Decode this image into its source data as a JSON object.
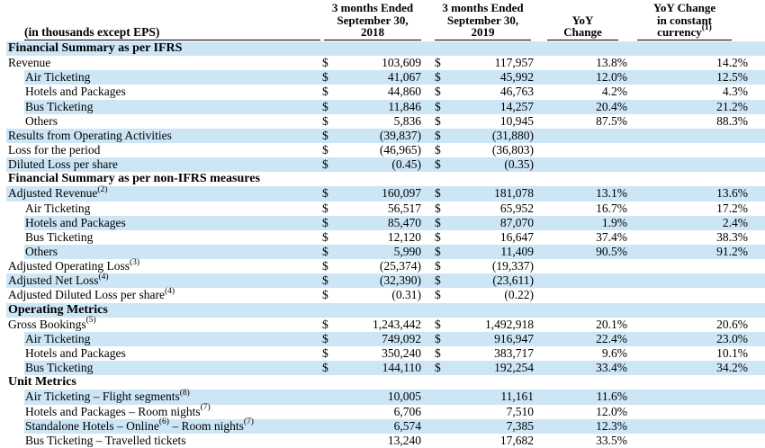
{
  "table": {
    "currency_symbol": "$",
    "row_header": "(in thousands except EPS)",
    "colors": {
      "row_highlight": "#cce6f5",
      "text": "#000000",
      "rule": "#000000"
    },
    "columns": {
      "c2018": {
        "line1": "3 months Ended",
        "line2": "September 30,",
        "line3": "2018"
      },
      "c2019": {
        "line1": "3 months Ended",
        "line2": "September 30,",
        "line3": "2019"
      },
      "yoy": {
        "line1": "YoY",
        "line2": "Change"
      },
      "cc": {
        "line1": "YoY Change",
        "line2": "in constant",
        "line3": "currency",
        "sup": "(1)"
      }
    },
    "rows": [
      {
        "type": "section",
        "label": "Financial Summary as per IFRS",
        "shaded": true
      },
      {
        "type": "data",
        "label": "Revenue",
        "indent": false,
        "shaded": false,
        "dollar": true,
        "v2018": "103,609",
        "v2019": "117,957",
        "yoy": "13.8%",
        "cc": "14.2%"
      },
      {
        "type": "data",
        "label": "Air Ticketing",
        "indent": true,
        "shaded": true,
        "dollar": true,
        "v2018": "41,067",
        "v2019": "45,992",
        "yoy": "12.0%",
        "cc": "12.5%"
      },
      {
        "type": "data",
        "label": "Hotels and Packages",
        "indent": true,
        "shaded": false,
        "dollar": true,
        "v2018": "44,860",
        "v2019": "46,763",
        "yoy": "4.2%",
        "cc": "4.3%"
      },
      {
        "type": "data",
        "label": "Bus Ticketing",
        "indent": true,
        "shaded": true,
        "dollar": true,
        "v2018": "11,846",
        "v2019": "14,257",
        "yoy": "20.4%",
        "cc": "21.2%"
      },
      {
        "type": "data",
        "label": "Others",
        "indent": true,
        "shaded": false,
        "dollar": true,
        "v2018": "5,836",
        "v2019": "10,945",
        "yoy": "87.5%",
        "cc": "88.3%"
      },
      {
        "type": "data",
        "label": "Results from Operating Activities",
        "indent": false,
        "shaded": true,
        "dollar": true,
        "v2018": "(39,837)",
        "v2019": "(31,880)",
        "yoy": "",
        "cc": ""
      },
      {
        "type": "data",
        "label": "Loss for the period",
        "indent": false,
        "shaded": false,
        "dollar": true,
        "v2018": "(46,965)",
        "v2019": "(36,803)",
        "yoy": "",
        "cc": ""
      },
      {
        "type": "data",
        "label": "Diluted Loss per share",
        "indent": false,
        "shaded": true,
        "dollar": true,
        "v2018": "(0.45)",
        "v2019": "(0.35)",
        "yoy": "",
        "cc": ""
      },
      {
        "type": "section",
        "label": "Financial Summary as per non-IFRS measures",
        "shaded": false
      },
      {
        "type": "data",
        "label": "Adjusted Revenue",
        "sup": "(2)",
        "indent": false,
        "shaded": true,
        "dollar": true,
        "v2018": "160,097",
        "v2019": "181,078",
        "yoy": "13.1%",
        "cc": "13.6%"
      },
      {
        "type": "data",
        "label": "Air Ticketing",
        "indent": true,
        "shaded": false,
        "dollar": true,
        "v2018": "56,517",
        "v2019": "65,952",
        "yoy": "16.7%",
        "cc": "17.2%"
      },
      {
        "type": "data",
        "label": "Hotels and Packages",
        "indent": true,
        "shaded": true,
        "dollar": true,
        "v2018": "85,470",
        "v2019": "87,070",
        "yoy": "1.9%",
        "cc": "2.4%"
      },
      {
        "type": "data",
        "label": "Bus Ticketing",
        "indent": true,
        "shaded": false,
        "dollar": true,
        "v2018": "12,120",
        "v2019": "16,647",
        "yoy": "37.4%",
        "cc": "38.3%"
      },
      {
        "type": "data",
        "label": "Others",
        "indent": true,
        "shaded": true,
        "dollar": true,
        "v2018": "5,990",
        "v2019": "11,409",
        "yoy": "90.5%",
        "cc": "91.2%"
      },
      {
        "type": "data",
        "label": "Adjusted Operating Loss",
        "sup": "(3)",
        "indent": false,
        "shaded": false,
        "dollar": true,
        "v2018": "(25,374)",
        "v2019": "(19,337)",
        "yoy": "",
        "cc": ""
      },
      {
        "type": "data",
        "label": "Adjusted Net Loss",
        "sup": "(4)",
        "indent": false,
        "shaded": true,
        "dollar": true,
        "v2018": "(32,390)",
        "v2019": "(23,611)",
        "yoy": "",
        "cc": ""
      },
      {
        "type": "data",
        "label": "Adjusted Diluted Loss per share",
        "sup": "(4)",
        "indent": false,
        "shaded": false,
        "dollar": true,
        "v2018": "(0.31)",
        "v2019": "(0.22)",
        "yoy": "",
        "cc": ""
      },
      {
        "type": "section",
        "label": "Operating Metrics",
        "shaded": true
      },
      {
        "type": "data",
        "label": "Gross Bookings",
        "sup": "(5)",
        "indent": false,
        "shaded": false,
        "dollar": true,
        "v2018": "1,243,442",
        "v2019": "1,492,918",
        "yoy": "20.1%",
        "cc": "20.6%"
      },
      {
        "type": "data",
        "label": "Air Ticketing",
        "indent": true,
        "shaded": true,
        "dollar": true,
        "v2018": "749,092",
        "v2019": "916,947",
        "yoy": "22.4%",
        "cc": "23.0%"
      },
      {
        "type": "data",
        "label": "Hotels and Packages",
        "indent": true,
        "shaded": false,
        "dollar": true,
        "v2018": "350,240",
        "v2019": "383,717",
        "yoy": "9.6%",
        "cc": "10.1%"
      },
      {
        "type": "data",
        "label": "Bus Ticketing",
        "indent": true,
        "shaded": true,
        "dollar": true,
        "v2018": "144,110",
        "v2019": "192,254",
        "yoy": "33.4%",
        "cc": "34.2%"
      },
      {
        "type": "section",
        "label": "Unit Metrics",
        "shaded": false
      },
      {
        "type": "data",
        "label": "Air Ticketing – Flight segments",
        "sup": "(8)",
        "indent": true,
        "shaded": true,
        "dollar": false,
        "v2018": "10,005",
        "v2019": "11,161",
        "yoy": "11.6%",
        "cc": ""
      },
      {
        "type": "data",
        "label": "Hotels and Packages – Room nights",
        "sup": "(7)",
        "indent": true,
        "shaded": false,
        "dollar": false,
        "v2018": "6,706",
        "v2019": "7,510",
        "yoy": "12.0%",
        "cc": ""
      },
      {
        "type": "data",
        "label": "Standalone Hotels – Online",
        "sup": "(6)",
        "label2": " – Room nights",
        "sup2": "(7)",
        "indent": true,
        "shaded": true,
        "dollar": false,
        "v2018": "6,574",
        "v2019": "7,385",
        "yoy": "12.3%",
        "cc": ""
      },
      {
        "type": "data",
        "label": "Bus Ticketing – Travelled tickets",
        "indent": true,
        "shaded": false,
        "dollar": false,
        "v2018": "13,240",
        "v2019": "17,682",
        "yoy": "33.5%",
        "cc": ""
      }
    ]
  }
}
